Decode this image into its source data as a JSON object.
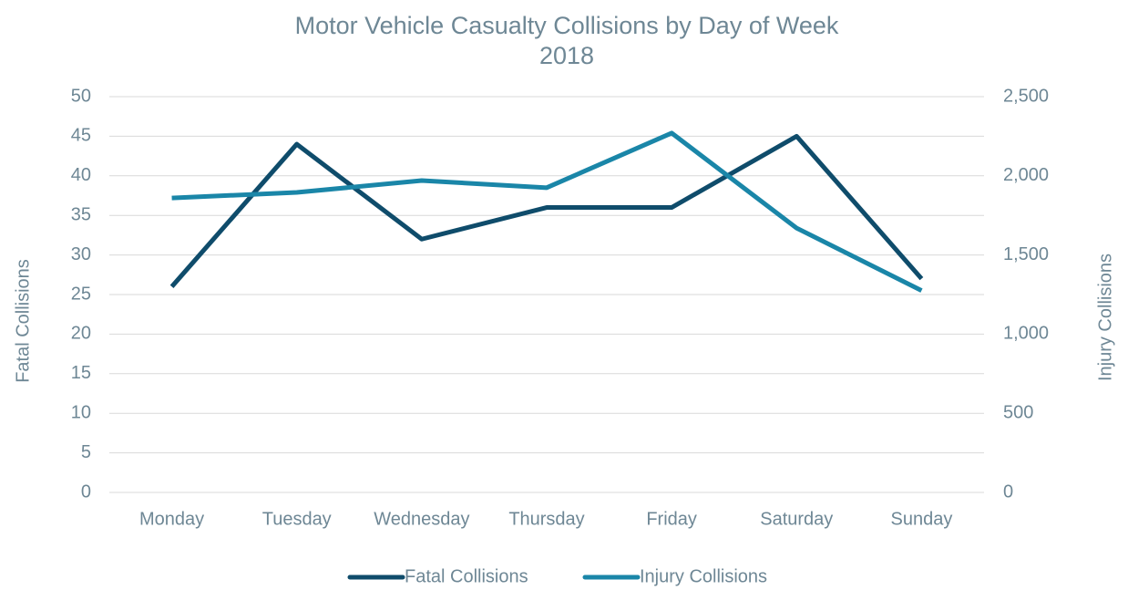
{
  "chart_data": {
    "type": "line",
    "title": "Motor Vehicle Casualty Collisions by Day of Week",
    "subtitle": "2018",
    "y_label": "Fatal Collisions",
    "y2_label": "Injury Collisions",
    "categories": [
      "Monday",
      "Tuesday",
      "Wednesday",
      "Thursday",
      "Friday",
      "Saturday",
      "Sunday"
    ],
    "series": [
      {
        "name": "Fatal Collisions",
        "color": "#0f4c6b",
        "values": [
          26,
          44,
          32,
          36,
          36,
          45,
          27
        ]
      },
      {
        "name": "Injury Collisions",
        "color": "#1a86a8",
        "axis": "y2",
        "values": [
          1860,
          1895,
          1970,
          1925,
          2270,
          1670,
          1275
        ]
      }
    ],
    "ylim": [
      0,
      50
    ],
    "yticks": [
      0,
      5,
      10,
      15,
      20,
      25,
      30,
      35,
      40,
      45,
      50
    ],
    "y2lim": [
      0,
      2500
    ],
    "y2ticks": [
      0,
      500,
      {
        "value": 1000,
        "label": "1,000"
      },
      {
        "value": 1500,
        "label": "1,500"
      },
      {
        "value": 2000,
        "label": "2,000"
      },
      {
        "value": 2500,
        "label": "2,500"
      }
    ],
    "grid": true,
    "legend": "bottom"
  }
}
